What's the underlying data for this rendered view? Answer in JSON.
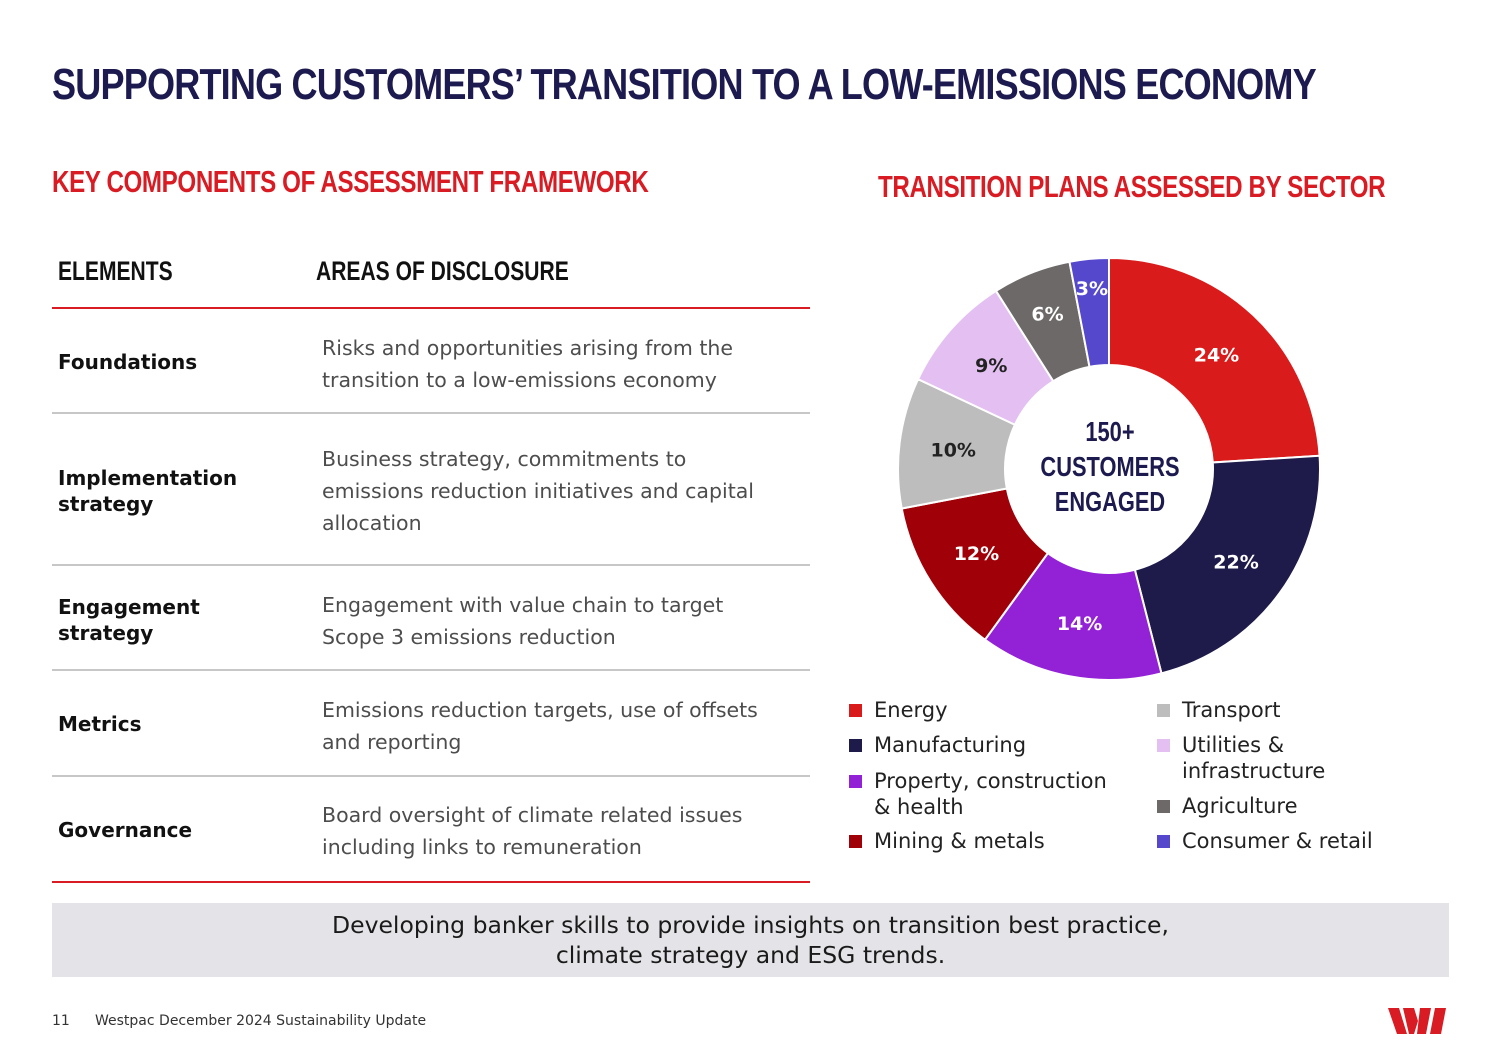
{
  "title": "SUPPORTING CUSTOMERS’ TRANSITION TO A LOW-EMISSIONS ECONOMY",
  "left": {
    "heading": "KEY COMPONENTS OF ASSESSMENT FRAMEWORK",
    "columns": [
      "ELEMENTS",
      "AREAS OF DISCLOSURE"
    ],
    "rows": [
      {
        "element": "Foundations",
        "area": "Risks and opportunities arising from the transition to a low-emissions economy"
      },
      {
        "element": "Implementation strategy",
        "area": "Business strategy, commitments to emissions reduction initiatives and capital allocation"
      },
      {
        "element": "Engagement strategy",
        "area": "Engagement with value chain to target Scope 3 emissions reduction"
      },
      {
        "element": "Metrics",
        "area": "Emissions reduction targets, use of offsets and reporting"
      },
      {
        "element": "Governance",
        "area": "Board oversight of climate related issues including links to remuneration"
      }
    ]
  },
  "right": {
    "heading": "TRANSITION PLANS ASSESSED BY SECTOR",
    "center_lines": [
      "150+",
      "CUSTOMERS",
      "ENGAGED"
    ]
  },
  "chart_data": {
    "type": "pie",
    "style": "donut",
    "title": "TRANSITION PLANS ASSESSED BY SECTOR",
    "center_label": "150+ CUSTOMERS ENGAGED",
    "unit": "%",
    "slices": [
      {
        "label": "Energy",
        "value": 24,
        "display": "24%",
        "color": "#d91b1b"
      },
      {
        "label": "Manufacturing",
        "value": 22,
        "display": "22%",
        "color": "#1e1a4a"
      },
      {
        "label": "Property, construction & health",
        "value": 14,
        "display": "14%",
        "color": "#9321d6"
      },
      {
        "label": "Mining & metals",
        "value": 12,
        "display": "12%",
        "color": "#a00007"
      },
      {
        "label": "Transport",
        "value": 10,
        "display": "10%",
        "color": "#bdbdbd"
      },
      {
        "label": "Utilities & infrastructure",
        "value": 9,
        "display": "9%",
        "color": "#e3bff2"
      },
      {
        "label": "Agriculture",
        "value": 6,
        "display": "6%",
        "color": "#6d6969"
      },
      {
        "label": "Consumer & retail",
        "value": 3,
        "display": "3%",
        "color": "#5548cc"
      }
    ],
    "legend": {
      "left": [
        {
          "label": "Energy",
          "color": "#d91b1b"
        },
        {
          "label": "Manufacturing",
          "color": "#1e1a4a"
        },
        {
          "label": "Property, construction & health",
          "color": "#9321d6"
        },
        {
          "label": "Mining & metals",
          "color": "#a00007"
        }
      ],
      "right": [
        {
          "label": "Transport",
          "color": "#bdbdbd"
        },
        {
          "label": "Utilities & infrastructure",
          "color": "#e3bff2"
        },
        {
          "label": "Agriculture",
          "color": "#6d6969"
        },
        {
          "label": "Consumer & retail",
          "color": "#5548cc"
        }
      ]
    }
  },
  "banner": {
    "line1": "Developing banker skills to provide insights on transition best practice,",
    "line2": "climate strategy and ESG trends."
  },
  "footer": {
    "page": "11",
    "text": "Westpac December 2024 Sustainability Update"
  },
  "brand": {
    "logo_name": "westpac-logo",
    "color": "#d91b23"
  }
}
